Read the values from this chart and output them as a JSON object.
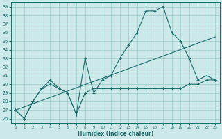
{
  "xlabel": "Humidex (Indice chaleur)",
  "bg_color": "#cce8e8",
  "grid_color": "#99cccc",
  "line_color": "#1a6b6b",
  "xlim": [
    -0.5,
    23.5
  ],
  "ylim": [
    25.5,
    39.5
  ],
  "yticks": [
    26,
    27,
    28,
    29,
    30,
    31,
    32,
    33,
    34,
    35,
    36,
    37,
    38,
    39
  ],
  "xticks": [
    0,
    1,
    2,
    3,
    4,
    5,
    6,
    7,
    8,
    9,
    10,
    11,
    12,
    13,
    14,
    15,
    16,
    17,
    18,
    19,
    20,
    21,
    22,
    23
  ],
  "series1_x": [
    0,
    1,
    2,
    3,
    4,
    5,
    6,
    7,
    8,
    9,
    10,
    11,
    12,
    13,
    14,
    15,
    16,
    17,
    18,
    19,
    20,
    21,
    22,
    23
  ],
  "series1_y": [
    27.0,
    26.0,
    28.0,
    29.5,
    30.5,
    29.5,
    29.0,
    26.5,
    33.0,
    29.0,
    30.5,
    31.0,
    33.0,
    34.5,
    36.0,
    38.5,
    38.5,
    39.0,
    36.0,
    35.0,
    33.0,
    30.5,
    31.0,
    30.5
  ],
  "series2_x": [
    0,
    1,
    2,
    3,
    4,
    5,
    6,
    7,
    8,
    9,
    10,
    11,
    12,
    13,
    14,
    15,
    16,
    17,
    18,
    19,
    20,
    21,
    22,
    23
  ],
  "series2_y": [
    27.0,
    26.0,
    28.0,
    29.5,
    30.0,
    29.5,
    29.0,
    26.5,
    29.0,
    29.5,
    29.5,
    29.5,
    29.5,
    29.5,
    29.5,
    29.5,
    29.5,
    29.5,
    29.5,
    29.5,
    30.0,
    30.0,
    30.5,
    30.5
  ],
  "series3_x": [
    0,
    23
  ],
  "series3_y": [
    27.0,
    35.5
  ]
}
